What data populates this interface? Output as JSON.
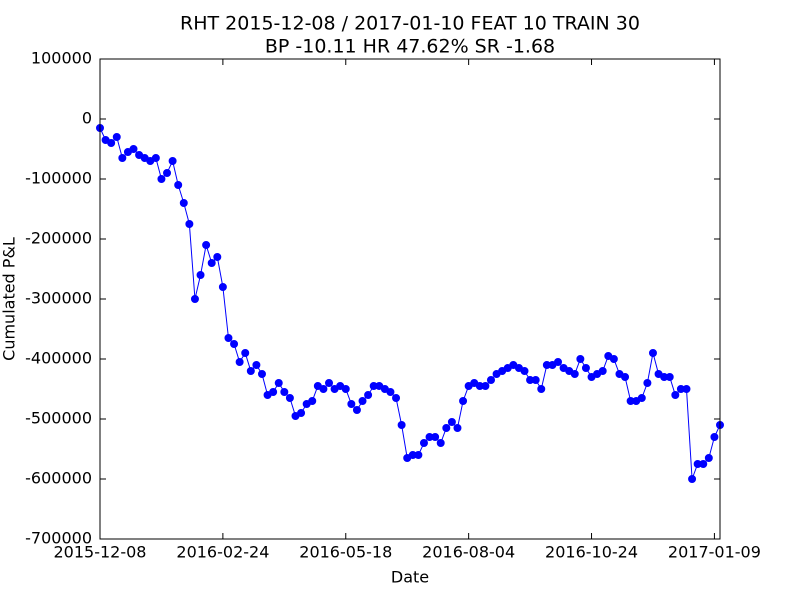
{
  "chart_data": {
    "type": "line",
    "title": "RHT 2015-12-08 / 2017-01-10 FEAT 10 TRAIN 30",
    "subtitle": "BP -10.11 HR 47.62%  SR -1.68",
    "x_label": "Date",
    "y_label": "Cumulated P&L",
    "xlim": [
      0,
      111
    ],
    "xticks": [
      {
        "value": 0,
        "label": "2015-12-08"
      },
      {
        "value": 22,
        "label": "2016-02-24"
      },
      {
        "value": 44,
        "label": "2016-05-18"
      },
      {
        "value": 66,
        "label": "2016-08-04"
      },
      {
        "value": 88,
        "label": "2016-10-24"
      },
      {
        "value": 110,
        "label": "2017-01-09"
      }
    ],
    "ylim": [
      -700000,
      100000
    ],
    "yticks": [
      -700000,
      -600000,
      -500000,
      -400000,
      -300000,
      -200000,
      -100000,
      0,
      100000
    ],
    "series": [
      {
        "color": "#0000ff",
        "values": [
          -15000,
          -35000,
          -40000,
          -30000,
          -65000,
          -55000,
          -50000,
          -60000,
          -65000,
          -70000,
          -65000,
          -100000,
          -90000,
          -70000,
          -110000,
          -140000,
          -175000,
          -300000,
          -260000,
          -210000,
          -240000,
          -230000,
          -280000,
          -365000,
          -375000,
          -405000,
          -390000,
          -420000,
          -410000,
          -425000,
          -460000,
          -455000,
          -440000,
          -455000,
          -465000,
          -495000,
          -490000,
          -475000,
          -470000,
          -445000,
          -450000,
          -440000,
          -450000,
          -445000,
          -450000,
          -475000,
          -485000,
          -470000,
          -460000,
          -445000,
          -445000,
          -450000,
          -455000,
          -465000,
          -510000,
          -565000,
          -560000,
          -560000,
          -540000,
          -530000,
          -530000,
          -540000,
          -515000,
          -505000,
          -515000,
          -470000,
          -445000,
          -440000,
          -445000,
          -445000,
          -435000,
          -425000,
          -420000,
          -415000,
          -410000,
          -415000,
          -420000,
          -435000,
          -435000,
          -450000,
          -410000,
          -410000,
          -405000,
          -415000,
          -420000,
          -425000,
          -400000,
          -415000,
          -430000,
          -425000,
          -420000,
          -395000,
          -400000,
          -425000,
          -430000,
          -470000,
          -470000,
          -465000,
          -440000,
          -390000,
          -425000,
          -430000,
          -430000,
          -460000,
          -450000,
          -450000,
          -600000,
          -575000,
          -575000,
          -565000,
          -530000,
          -510000
        ]
      }
    ]
  }
}
